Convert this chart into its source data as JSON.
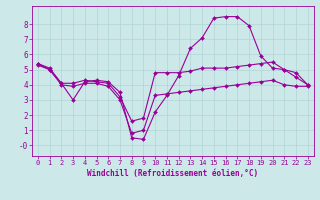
{
  "title": "",
  "xlabel": "Windchill (Refroidissement éolien,°C)",
  "ylabel": "",
  "bg_color": "#cce8e8",
  "line_color": "#990099",
  "grid_color": "#b0d4d4",
  "xlim": [
    -0.5,
    23.5
  ],
  "ylim": [
    -0.7,
    9.2
  ],
  "yticks": [
    0,
    1,
    2,
    3,
    4,
    5,
    6,
    7,
    8
  ],
  "ytick_labels": [
    "-0",
    "1",
    "2",
    "3",
    "4",
    "5",
    "6",
    "7",
    "8"
  ],
  "xticks": [
    0,
    1,
    2,
    3,
    4,
    5,
    6,
    7,
    8,
    9,
    10,
    11,
    12,
    13,
    14,
    15,
    16,
    17,
    18,
    19,
    20,
    21,
    22,
    23
  ],
  "curve1_x": [
    0,
    1,
    2,
    3,
    4,
    5,
    6,
    7,
    8,
    9,
    10,
    11,
    12,
    13,
    14,
    15,
    16,
    17,
    18,
    19,
    20,
    21,
    22,
    23
  ],
  "curve1_y": [
    5.4,
    5.1,
    4.1,
    3.0,
    4.2,
    4.3,
    4.2,
    3.5,
    0.5,
    0.4,
    2.2,
    3.3,
    4.6,
    6.4,
    7.1,
    8.4,
    8.5,
    8.5,
    7.9,
    5.9,
    5.1,
    5.0,
    4.8,
    4.0
  ],
  "curve2_x": [
    0,
    1,
    2,
    3,
    4,
    5,
    6,
    7,
    8,
    9,
    10,
    11,
    12,
    13,
    14,
    15,
    16,
    17,
    18,
    19,
    20,
    21,
    22,
    23
  ],
  "curve2_y": [
    5.3,
    5.0,
    4.1,
    4.1,
    4.3,
    4.2,
    4.1,
    3.2,
    1.6,
    1.8,
    4.8,
    4.8,
    4.8,
    4.9,
    5.1,
    5.1,
    5.1,
    5.2,
    5.3,
    5.4,
    5.5,
    5.0,
    4.5,
    4.0
  ],
  "curve3_x": [
    0,
    1,
    2,
    3,
    4,
    5,
    6,
    7,
    8,
    9,
    10,
    11,
    12,
    13,
    14,
    15,
    16,
    17,
    18,
    19,
    20,
    21,
    22,
    23
  ],
  "curve3_y": [
    5.4,
    5.0,
    4.0,
    3.9,
    4.1,
    4.1,
    3.9,
    3.0,
    0.8,
    1.0,
    3.3,
    3.4,
    3.5,
    3.6,
    3.7,
    3.8,
    3.9,
    4.0,
    4.1,
    4.2,
    4.3,
    4.0,
    3.9,
    3.9
  ],
  "tick_fontsize": 5.0,
  "xlabel_fontsize": 5.5,
  "marker_size": 2.0,
  "line_width": 0.8
}
